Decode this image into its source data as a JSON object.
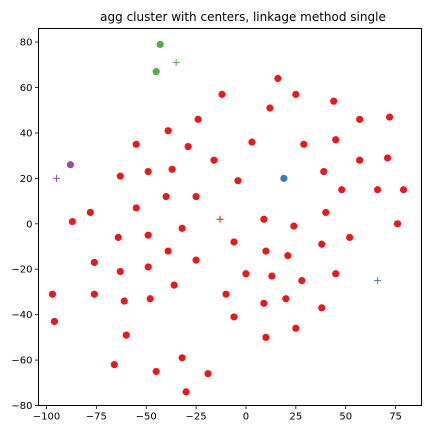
{
  "chart_data": {
    "type": "scatter",
    "title": "agg cluster with centers, linkage method single",
    "xlabel": "",
    "ylabel": "",
    "xlim": [
      -104,
      88
    ],
    "ylim": [
      -80,
      86
    ],
    "x_ticks": [
      -100,
      -75,
      -50,
      -25,
      0,
      25,
      50,
      75
    ],
    "x_tick_labels": [
      "−100",
      "−75",
      "−50",
      "−25",
      "0",
      "25",
      "50",
      "75"
    ],
    "y_ticks": [
      -80,
      -60,
      -40,
      -20,
      0,
      20,
      40,
      60,
      80
    ],
    "y_tick_labels": [
      "−80",
      "−60",
      "−40",
      "−20",
      "0",
      "20",
      "40",
      "60",
      "80"
    ],
    "grid": false,
    "legend": false,
    "series": [
      {
        "color": "#e41a1c",
        "marker": "circle",
        "points": [
          [
            16,
            64
          ],
          [
            25,
            57
          ],
          [
            12,
            51
          ],
          [
            -12,
            57
          ],
          [
            -24,
            46
          ],
          [
            44,
            54
          ],
          [
            57,
            46
          ],
          [
            72,
            47
          ],
          [
            -39,
            41
          ],
          [
            -55,
            35
          ],
          [
            -29,
            34
          ],
          [
            3,
            36
          ],
          [
            29,
            35
          ],
          [
            45,
            37
          ],
          [
            -16,
            28
          ],
          [
            -49,
            23
          ],
          [
            -37,
            24
          ],
          [
            57,
            28
          ],
          [
            71,
            29
          ],
          [
            -63,
            21
          ],
          [
            -4,
            19
          ],
          [
            39,
            23
          ],
          [
            -40,
            12
          ],
          [
            -25,
            12
          ],
          [
            48,
            15
          ],
          [
            66,
            15
          ],
          [
            79,
            15
          ],
          [
            -55,
            7
          ],
          [
            -78,
            5
          ],
          [
            40,
            5
          ],
          [
            -87,
            1
          ],
          [
            9,
            2
          ],
          [
            24,
            -1
          ],
          [
            76,
            0
          ],
          [
            -32,
            -2
          ],
          [
            -49,
            -5
          ],
          [
            -64,
            -6
          ],
          [
            -6,
            -8
          ],
          [
            52,
            -6
          ],
          [
            38,
            -9
          ],
          [
            -39,
            -12
          ],
          [
            10,
            -12
          ],
          [
            21,
            -14
          ],
          [
            -76,
            -17
          ],
          [
            -25,
            -16
          ],
          [
            -49,
            -19
          ],
          [
            -63,
            -21
          ],
          [
            0,
            -22
          ],
          [
            13,
            -23
          ],
          [
            45,
            -22
          ],
          [
            28,
            -25
          ],
          [
            -97,
            -31
          ],
          [
            -76,
            -31
          ],
          [
            -36,
            -27
          ],
          [
            -10,
            -31
          ],
          [
            -61,
            -34
          ],
          [
            -48,
            -33
          ],
          [
            9,
            -35
          ],
          [
            20,
            -33
          ],
          [
            38,
            -37
          ],
          [
            -6,
            -41
          ],
          [
            -96,
            -43
          ],
          [
            25,
            -46
          ],
          [
            -60,
            -49
          ],
          [
            10,
            -50
          ],
          [
            -66,
            -62
          ],
          [
            -32,
            -59
          ],
          [
            -45,
            -65
          ],
          [
            -19,
            -66
          ],
          [
            -30,
            -74
          ]
        ]
      },
      {
        "color": "#4daf4a",
        "marker": "circle",
        "points": [
          [
            -43,
            79
          ],
          [
            -45,
            67
          ]
        ]
      },
      {
        "color": "#377eb8",
        "marker": "circle",
        "points": [
          [
            19,
            20
          ]
        ]
      },
      {
        "color": "#984ea3",
        "marker": "circle",
        "points": [
          [
            -88,
            26
          ]
        ]
      }
    ],
    "centers": [
      {
        "color": "#4daf4a",
        "marker": "plus",
        "point": [
          -35,
          71
        ]
      },
      {
        "color": "#984ea3",
        "marker": "plus",
        "point": [
          -95,
          20
        ]
      },
      {
        "color": "#e41a1c",
        "marker": "plus",
        "point": [
          -13,
          2
        ]
      },
      {
        "color": "#377eb8",
        "marker": "plus",
        "point": [
          66,
          -25
        ]
      }
    ]
  }
}
